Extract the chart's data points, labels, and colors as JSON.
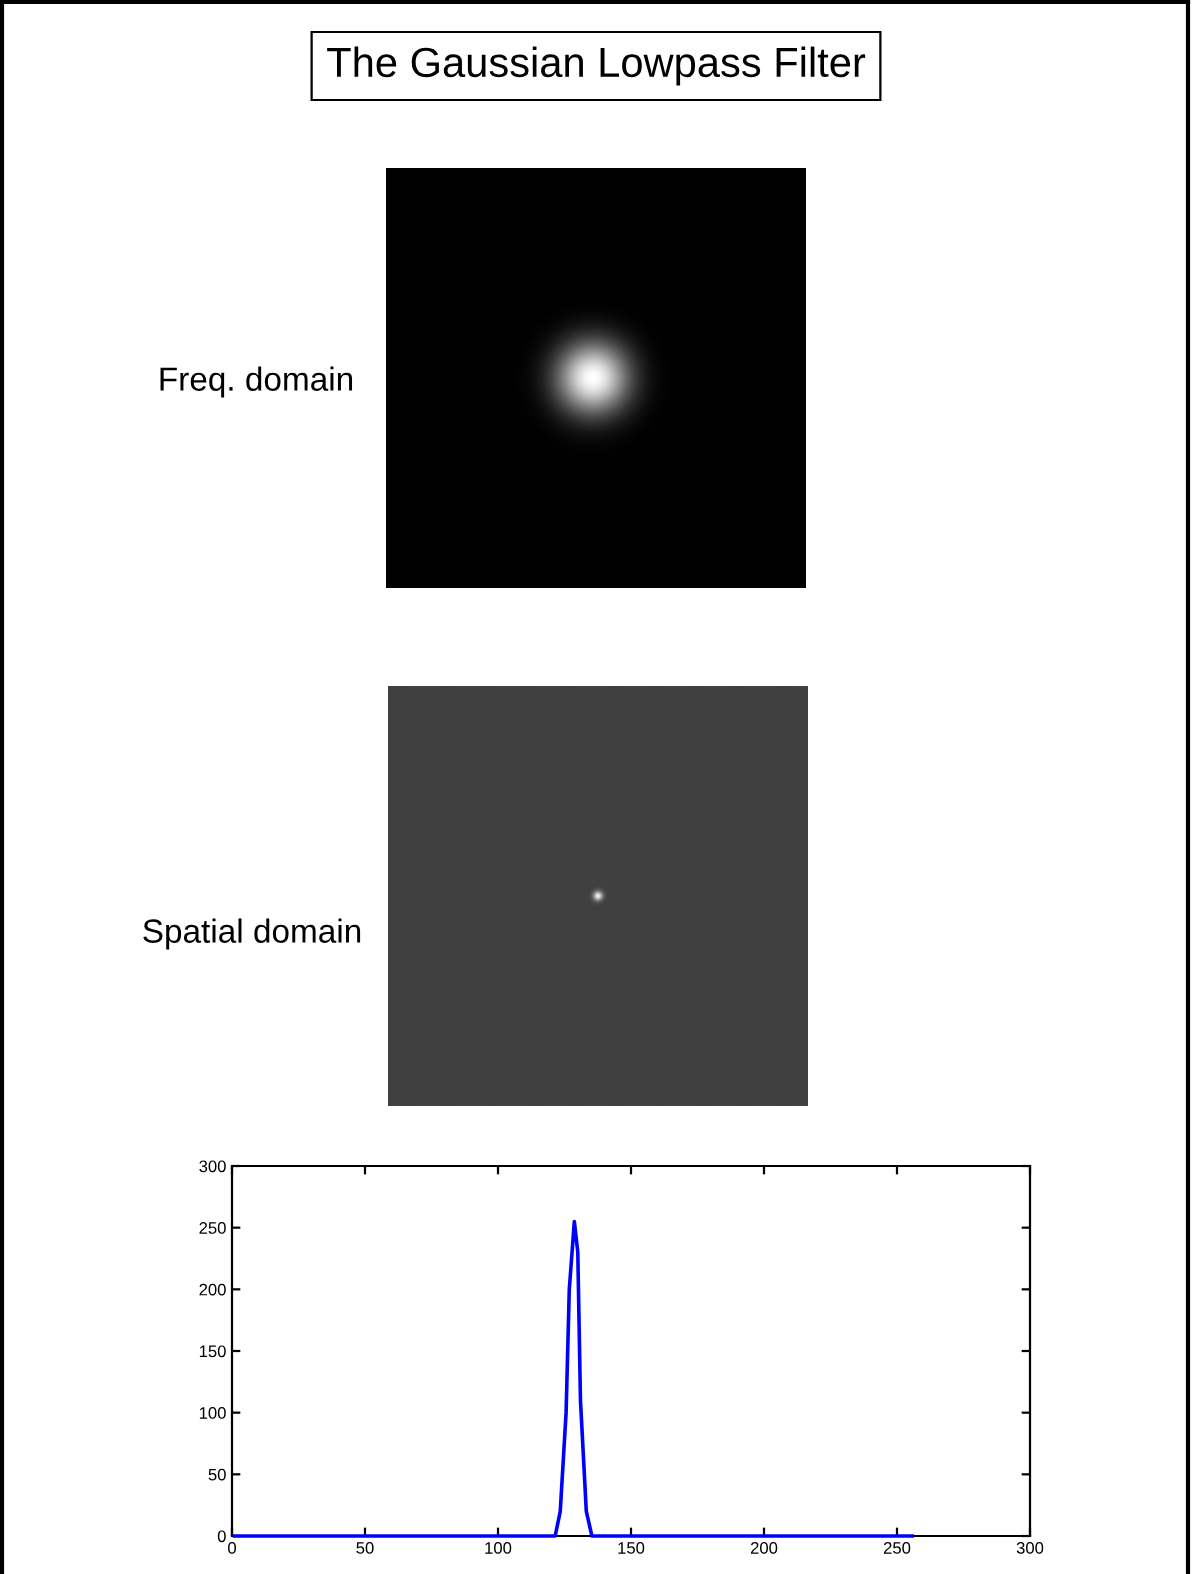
{
  "chart_data": {
    "type": "line",
    "title": "The Gaussian Lowpass Filter",
    "annotations": [
      "Freq. domain",
      "Spatial domain"
    ],
    "x": [
      1,
      121.5,
      123.4,
      125.6,
      126.8,
      128.7,
      130,
      131,
      133.2,
      135.3,
      255.7
    ],
    "series": [
      {
        "color": "#0000ff",
        "values": [
          0,
          0,
          20,
          100,
          200,
          255,
          230,
          110,
          20,
          0,
          0
        ]
      }
    ],
    "xlim": [
      0,
      300
    ],
    "xticks": [
      0,
      50,
      100,
      150,
      200,
      250,
      300
    ],
    "ylim": [
      0,
      300
    ],
    "yticks": [
      0,
      50,
      100,
      150,
      200,
      250,
      300
    ],
    "grid": false,
    "legend": false,
    "marker": "none",
    "line_style": "solid"
  }
}
